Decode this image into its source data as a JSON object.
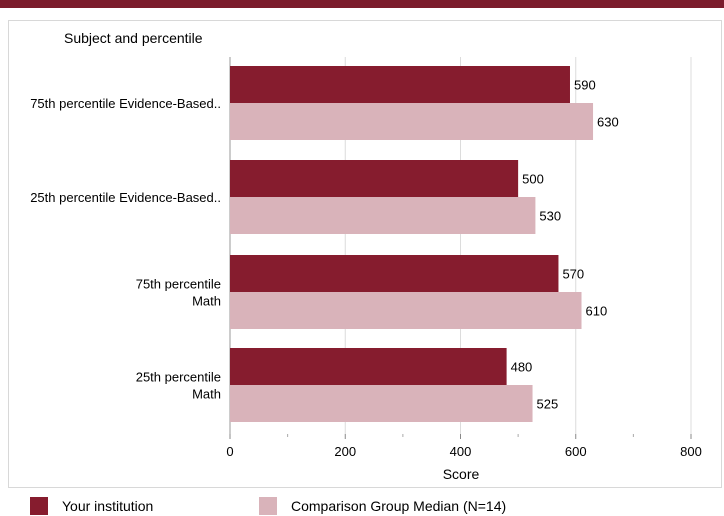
{
  "chart_data": {
    "type": "bar",
    "orientation": "horizontal",
    "y_axis_title": "Subject and percentile",
    "xlabel": "Score",
    "xlim": [
      0,
      800
    ],
    "x_ticks": [
      "0",
      "200",
      "400",
      "600",
      "800"
    ],
    "grid": true,
    "categories": [
      [
        "75th percentile Evidence-Based.."
      ],
      [
        "25th percentile Evidence-Based.."
      ],
      [
        "75th percentile",
        "Math"
      ],
      [
        "25th percentile",
        "Math"
      ]
    ],
    "series": [
      {
        "name": "Your institution",
        "color": "#861c2e",
        "values": [
          590,
          500,
          570,
          480
        ],
        "labels": [
          "590",
          "500",
          "570",
          "480"
        ]
      },
      {
        "name": "Comparison Group Median (N=14)",
        "color": "#d9b3ba",
        "values": [
          630,
          530,
          610,
          525
        ],
        "labels": [
          "630",
          "530",
          "610",
          "525"
        ]
      }
    ],
    "legend_position": "bottom"
  }
}
